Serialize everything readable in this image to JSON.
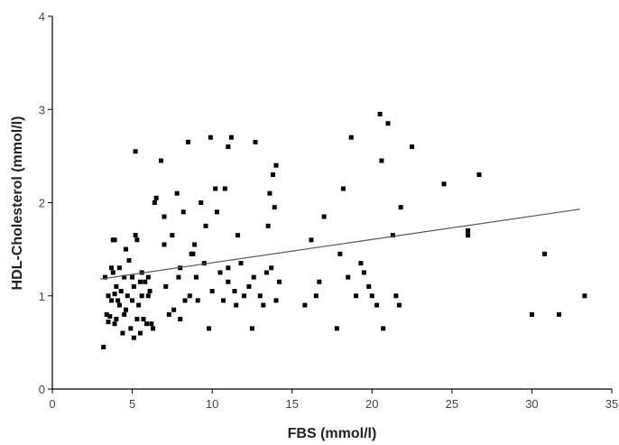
{
  "chart_data": {
    "type": "scatter",
    "title": "",
    "xlabel": "FBS (mmol/l)",
    "ylabel": "HDL-Cholesterol (mmol/l)",
    "xlim": [
      0,
      35
    ],
    "ylim": [
      0,
      4
    ],
    "xticks": [
      0,
      5,
      10,
      15,
      20,
      25,
      30,
      35
    ],
    "yticks": [
      0,
      1,
      2,
      3,
      4
    ],
    "grid": false,
    "legend": "none",
    "colors": {
      "points": "#000000",
      "trendline": "#555555",
      "axis": "#000000"
    },
    "trendline": {
      "x": [
        3.0,
        33.0
      ],
      "y": [
        1.18,
        1.93
      ]
    },
    "points": {
      "x": [
        3.2,
        3.3,
        3.4,
        3.5,
        3.5,
        3.6,
        3.7,
        3.7,
        3.8,
        3.8,
        3.9,
        3.9,
        4.0,
        4.0,
        4.1,
        4.2,
        4.2,
        4.3,
        4.4,
        4.5,
        4.5,
        4.6,
        4.7,
        4.8,
        4.9,
        5.0,
        5.0,
        5.1,
        5.1,
        5.2,
        5.3,
        5.3,
        5.4,
        5.5,
        5.5,
        5.6,
        5.6,
        5.7,
        5.8,
        5.9,
        6.0,
        6.0,
        6.1,
        6.2,
        6.3,
        6.5,
        6.8,
        7.0,
        7.0,
        7.1,
        7.3,
        7.5,
        7.6,
        7.8,
        7.9,
        8.0,
        8.0,
        8.2,
        8.3,
        8.5,
        8.6,
        8.8,
        8.9,
        9.0,
        9.1,
        9.3,
        9.5,
        9.6,
        9.8,
        9.9,
        10.0,
        10.2,
        10.3,
        10.5,
        10.7,
        10.8,
        11.0,
        11.0,
        11.2,
        11.4,
        11.5,
        11.6,
        11.8,
        12.0,
        12.3,
        12.5,
        12.7,
        13.0,
        13.2,
        13.4,
        13.5,
        13.6,
        13.7,
        13.8,
        13.9,
        14.0,
        14.0,
        14.2,
        15.8,
        16.2,
        16.5,
        16.7,
        17.0,
        17.8,
        18.0,
        18.2,
        18.5,
        18.7,
        19.0,
        19.3,
        19.5,
        19.8,
        20.0,
        20.3,
        20.5,
        20.6,
        20.7,
        21.0,
        21.3,
        21.5,
        21.7,
        21.8,
        22.5,
        24.5,
        26.0,
        26.0,
        26.7,
        30.0,
        30.8,
        31.7,
        33.3,
        11.0,
        12.6,
        5.2,
        3.9,
        4.6,
        6.4,
        8.7
      ],
      "y": [
        0.45,
        1.2,
        0.8,
        0.72,
        1.0,
        0.78,
        1.3,
        0.95,
        1.6,
        1.25,
        1.02,
        0.7,
        1.1,
        0.75,
        0.95,
        1.3,
        0.9,
        1.05,
        0.6,
        0.8,
        1.2,
        0.85,
        1.0,
        1.38,
        0.65,
        1.2,
        0.95,
        1.1,
        0.55,
        2.55,
        1.6,
        0.75,
        0.9,
        1.15,
        0.6,
        1.0,
        1.25,
        0.75,
        1.15,
        0.7,
        1.2,
        1.0,
        1.05,
        0.7,
        0.65,
        2.05,
        2.45,
        1.55,
        1.85,
        1.1,
        0.8,
        1.65,
        0.85,
        2.1,
        1.2,
        0.75,
        1.3,
        1.9,
        0.95,
        2.65,
        1.0,
        1.45,
        1.55,
        1.2,
        0.95,
        2.0,
        1.35,
        1.75,
        0.65,
        2.7,
        1.05,
        2.15,
        1.9,
        1.25,
        0.95,
        2.15,
        1.3,
        1.15,
        2.7,
        1.05,
        0.9,
        1.65,
        1.35,
        1.0,
        1.1,
        0.65,
        2.65,
        1.0,
        0.9,
        1.25,
        1.75,
        2.1,
        1.3,
        2.3,
        1.95,
        2.4,
        0.95,
        1.15,
        0.9,
        1.6,
        1.0,
        1.15,
        1.85,
        0.65,
        1.45,
        2.15,
        1.2,
        2.7,
        1.0,
        1.35,
        1.25,
        1.1,
        1.0,
        0.9,
        2.95,
        2.45,
        0.65,
        2.85,
        1.65,
        1.0,
        0.9,
        1.95,
        2.6,
        2.2,
        1.65,
        1.7,
        2.3,
        0.8,
        1.45,
        0.8,
        1.0,
        2.6,
        1.2,
        1.65,
        1.6,
        1.5,
        2.0,
        1.45
      ]
    }
  }
}
